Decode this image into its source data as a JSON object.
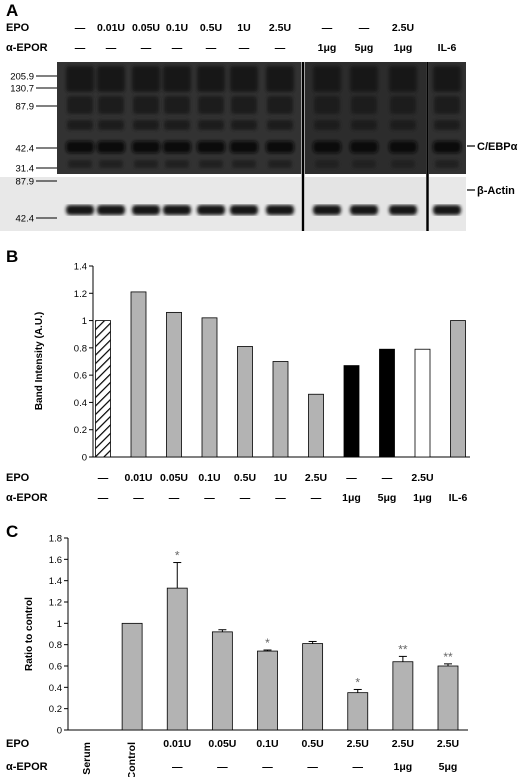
{
  "panel_a": {
    "letter": "A",
    "epo_row": {
      "label": "EPO",
      "values": [
        "—",
        "0.01U",
        "0.05U",
        "0.1U",
        "0.5U",
        "1U",
        "2.5U",
        "—",
        "—",
        "2.5U",
        ""
      ]
    },
    "aepor_row": {
      "label": "α-EPOR",
      "values": [
        "—",
        "—",
        "—",
        "—",
        "—",
        "—",
        "—",
        "1μg",
        "5μg",
        "1μg",
        "IL-6"
      ]
    },
    "mw_top": [
      "205.9",
      "130.7",
      "87.9",
      "42.4",
      "31.4"
    ],
    "mw_bottom": [
      "87.9",
      "42.4"
    ],
    "protein_top": "C/EBPα",
    "protein_bottom": "β-Actin"
  },
  "panel_b": {
    "letter": "B",
    "epo_row": {
      "label": "EPO",
      "values": [
        "—",
        "0.01U",
        "0.05U",
        "0.1U",
        "0.5U",
        "1U",
        "2.5U",
        "—",
        "—",
        "2.5U",
        ""
      ]
    },
    "aepor_row": {
      "label": "α-EPOR",
      "values": [
        "—",
        "—",
        "—",
        "—",
        "—",
        "—",
        "—",
        "1μg",
        "5μg",
        "1μg",
        "IL-6"
      ]
    }
  },
  "panel_c": {
    "letter": "C",
    "epo_row": {
      "label": "EPO",
      "values": [
        "Serum",
        "Control",
        "0.01U",
        "0.05U",
        "0.1U",
        "0.5U",
        "2.5U",
        "2.5U",
        "2.5U"
      ]
    },
    "aepor_row": {
      "label": "α-EPOR",
      "values": [
        "",
        "",
        "—",
        "—",
        "—",
        "—",
        "—",
        "1μg",
        "5μg"
      ]
    }
  },
  "chart_data": [
    {
      "type": "bar",
      "panel": "B",
      "ylabel": "Band Intensity (A.U.)",
      "ylim": [
        0,
        1.4
      ],
      "yticks": [
        "0",
        "0.2",
        "0.4",
        "0.6",
        "0.8",
        "1",
        "1.2",
        "1.4"
      ],
      "values": [
        1.0,
        1.21,
        1.06,
        1.02,
        0.81,
        0.7,
        0.46,
        0.67,
        0.79,
        0.79,
        1.0
      ],
      "fills": [
        "hatch",
        "#b3b3b3",
        "#b3b3b3",
        "#b3b3b3",
        "#b3b3b3",
        "#b3b3b3",
        "#b3b3b3",
        "#000000",
        "#000000",
        "#ffffff",
        "#b3b3b3"
      ],
      "grid": false
    },
    {
      "type": "bar",
      "panel": "C",
      "ylabel": "Ratio to control",
      "ylim": [
        0,
        1.8
      ],
      "yticks": [
        "0",
        "0.2",
        "0.4",
        "0.6",
        "0.8",
        "1",
        "1.2",
        "1.4",
        "1.6",
        "1.8"
      ],
      "values": [
        0,
        1.0,
        1.33,
        0.92,
        0.74,
        0.81,
        0.35,
        0.64,
        0.6
      ],
      "errors": [
        0,
        0,
        0.24,
        0.02,
        0.01,
        0.02,
        0.03,
        0.05,
        0.02
      ],
      "significance": [
        "",
        "",
        "*",
        "",
        "*",
        "",
        "*",
        "**",
        "**"
      ],
      "color": "#b3b3b3",
      "grid": false
    }
  ]
}
